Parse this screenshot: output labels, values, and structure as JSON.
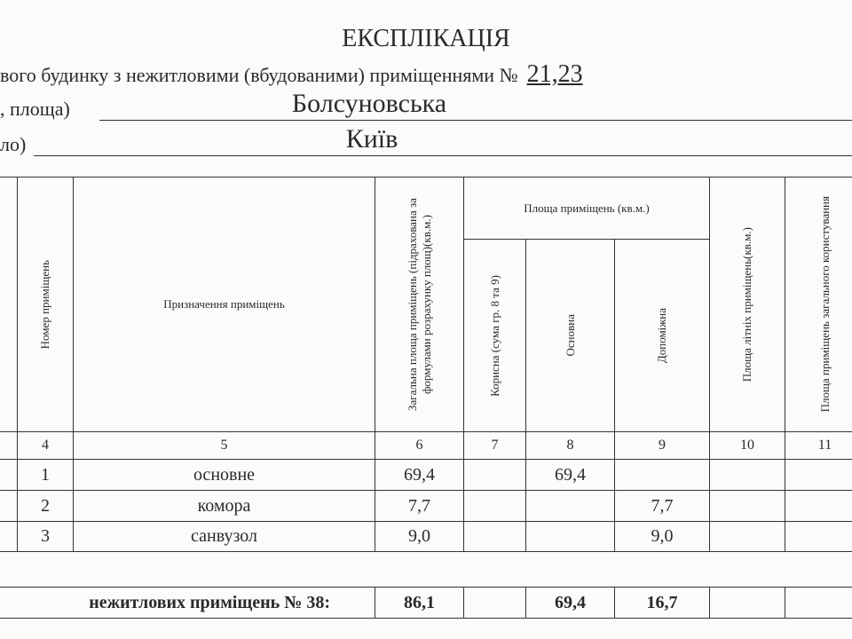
{
  "header": {
    "title": "ЕКСПЛІКАЦІЯ",
    "subtitle": "вого будинку з нежитловими (вбудованими) приміщеннями №",
    "subtitle_number": "21,23",
    "street_label": ", площа)",
    "street_value": "Болсуновська",
    "city_label": "ло)",
    "city_value": "Київ"
  },
  "table": {
    "headers": {
      "room_number": "Номер приміщень",
      "purpose": "Призначення приміщень",
      "total_area": "Загальна площа приміщень (підрахована за формулами розрахунку площ)(кв.м.)",
      "area_group": "Площа приміщень (кв.м.)",
      "useful": "Корисна (сума гр. 8 та 9)",
      "main": "Основна",
      "auxiliary": "Допоміжна",
      "summer": "Площа літніх приміщень(кв.м.)",
      "common": "Площа приміщень загального користування"
    },
    "column_numbers": [
      "4",
      "5",
      "6",
      "7",
      "8",
      "9",
      "10",
      "11"
    ],
    "rows": [
      {
        "number": "1",
        "purpose": "основне",
        "total": "69,4",
        "useful": "",
        "main": "69,4",
        "aux": "",
        "summer": "",
        "common": ""
      },
      {
        "number": "2",
        "purpose": "комора",
        "total": "7,7",
        "useful": "",
        "main": "",
        "aux": "7,7",
        "summer": "",
        "common": ""
      },
      {
        "number": "3",
        "purpose": "санвузол",
        "total": "9,0",
        "useful": "",
        "main": "",
        "aux": "9,0",
        "summer": "",
        "common": ""
      }
    ],
    "total_row": {
      "label": "нежитлових приміщень № 38:",
      "total": "86,1",
      "useful": "",
      "main": "69,4",
      "aux": "16,7",
      "summer": "",
      "common": ""
    }
  }
}
